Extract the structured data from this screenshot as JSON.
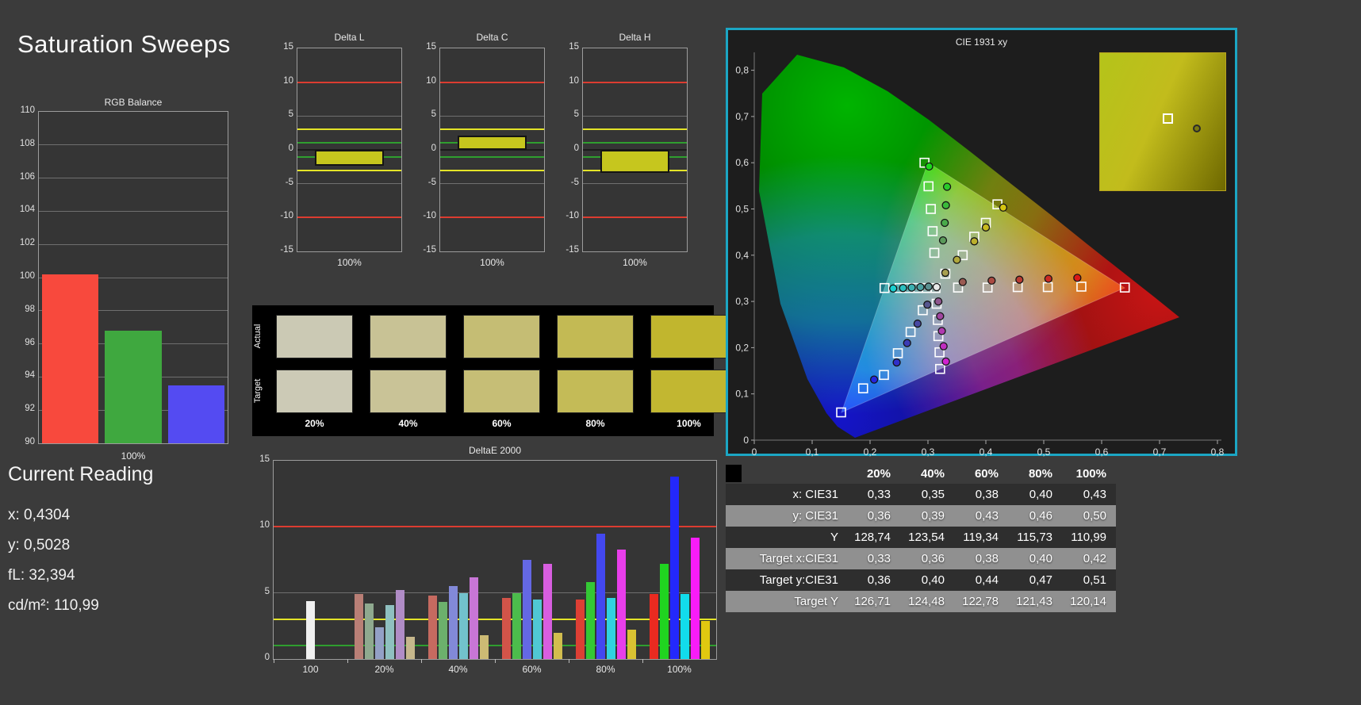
{
  "page": {
    "title": "Saturation Sweeps",
    "background": "#3b3b3b",
    "accent_frame": "#1ba6c4"
  },
  "chart_data": [
    {
      "id": "rgb_balance",
      "type": "bar",
      "title": "RGB Balance",
      "categories": [
        "Red",
        "Green",
        "Blue"
      ],
      "values": [
        100.2,
        96.8,
        93.5
      ],
      "colors": [
        "#f8493d",
        "#3fa83f",
        "#544bf2"
      ],
      "ylim": [
        90,
        110
      ],
      "ytick_step": 2,
      "bar_frac": 0.9,
      "xlabel": "100%"
    },
    {
      "id": "delta_l",
      "type": "bar",
      "title": "Delta L",
      "categories": [
        "100%"
      ],
      "values": [
        -2.3
      ],
      "colors": [
        "#c6c61e"
      ],
      "ylim": [
        -15,
        15
      ],
      "ytick_step": 5,
      "bar_frac": 0.66,
      "thick_border": true,
      "xlabel": "100%",
      "ref_lines": [
        [
          10,
          "#dc3c30"
        ],
        [
          -10,
          "#dc3c30"
        ],
        [
          3,
          "#e4e428"
        ],
        [
          -3,
          "#e4e428"
        ],
        [
          1,
          "#2f9e2f"
        ],
        [
          -1,
          "#2f9e2f"
        ]
      ]
    },
    {
      "id": "delta_c",
      "type": "bar",
      "title": "Delta C",
      "categories": [
        "100%"
      ],
      "values": [
        2.1
      ],
      "colors": [
        "#c6c61e"
      ],
      "ylim": [
        -15,
        15
      ],
      "ytick_step": 5,
      "bar_frac": 0.66,
      "thick_border": true,
      "xlabel": "100%",
      "ref_lines": [
        [
          10,
          "#dc3c30"
        ],
        [
          -10,
          "#dc3c30"
        ],
        [
          3,
          "#e4e428"
        ],
        [
          -3,
          "#e4e428"
        ],
        [
          1,
          "#2f9e2f"
        ],
        [
          -1,
          "#2f9e2f"
        ]
      ]
    },
    {
      "id": "delta_h",
      "type": "bar",
      "title": "Delta H",
      "categories": [
        "100%"
      ],
      "values": [
        -3.4
      ],
      "colors": [
        "#c6c61e"
      ],
      "ylim": [
        -15,
        15
      ],
      "ytick_step": 5,
      "bar_frac": 0.66,
      "thick_border": true,
      "xlabel": "100%",
      "ref_lines": [
        [
          10,
          "#dc3c30"
        ],
        [
          -10,
          "#dc3c30"
        ],
        [
          3,
          "#e4e428"
        ],
        [
          -3,
          "#e4e428"
        ],
        [
          1,
          "#2f9e2f"
        ],
        [
          -1,
          "#2f9e2f"
        ]
      ]
    },
    {
      "id": "deltae2000",
      "type": "grouped_bar",
      "title": "DeltaE 2000",
      "ylim": [
        0,
        15
      ],
      "yticks": [
        0,
        5,
        10,
        15
      ],
      "ref_lines": [
        [
          10,
          "#dc3c30"
        ],
        [
          3,
          "#e4e428"
        ],
        [
          1,
          "#2f9e2f"
        ]
      ],
      "series_note": "bars per group: Red, Green, Blue, Cyan, Magenta, Yellow",
      "groups": [
        {
          "label": "100",
          "values": [
            4.4
          ],
          "colors": [
            "#f0f0f0"
          ]
        },
        {
          "label": "20%",
          "values": [
            4.9,
            4.2,
            2.4,
            4.1,
            5.2,
            1.7
          ],
          "colors": [
            "#b97f76",
            "#8fa98f",
            "#93a0c6",
            "#8fc0c0",
            "#b08cc6",
            "#c6b78c"
          ]
        },
        {
          "label": "40%",
          "values": [
            4.8,
            4.3,
            5.5,
            5.0,
            6.2,
            1.8
          ],
          "colors": [
            "#c66a60",
            "#6cb06c",
            "#8289d8",
            "#72c2cc",
            "#c876d6",
            "#ccba74"
          ]
        },
        {
          "label": "60%",
          "values": [
            4.6,
            5.0,
            7.5,
            4.5,
            7.2,
            2.0
          ],
          "colors": [
            "#d25449",
            "#4cbc4c",
            "#6468e4",
            "#50c8d4",
            "#d85ee0",
            "#d2bd4e"
          ]
        },
        {
          "label": "80%",
          "values": [
            4.5,
            5.8,
            9.5,
            4.6,
            8.3,
            2.2
          ],
          "colors": [
            "#dd3f34",
            "#34c834",
            "#4348f0",
            "#30d2e0",
            "#e83eea",
            "#d8c232"
          ]
        },
        {
          "label": "100%",
          "values": [
            4.9,
            7.2,
            13.8,
            4.9,
            9.2,
            2.9
          ],
          "colors": [
            "#ea2a20",
            "#20d420",
            "#2328fc",
            "#12dcec",
            "#f81cf8",
            "#e0c810"
          ]
        }
      ]
    },
    {
      "id": "cie1931",
      "type": "scatter",
      "title": "CIE 1931 xy",
      "xlim": [
        0,
        0.8
      ],
      "ylim": [
        0,
        0.8
      ],
      "tick_labels": [
        "0",
        "0,1",
        "0,2",
        "0,3",
        "0,4",
        "0,5",
        "0,6",
        "0,7",
        "0,8"
      ],
      "frame_color": "#1ba6c4",
      "targets": [
        [
          0.313,
          0.329
        ],
        [
          0.352,
          0.33
        ],
        [
          0.403,
          0.33
        ],
        [
          0.455,
          0.331
        ],
        [
          0.507,
          0.331
        ],
        [
          0.565,
          0.332
        ],
        [
          0.64,
          0.33
        ],
        [
          0.311,
          0.405
        ],
        [
          0.308,
          0.452
        ],
        [
          0.305,
          0.5
        ],
        [
          0.301,
          0.549
        ],
        [
          0.294,
          0.6
        ],
        [
          0.291,
          0.281
        ],
        [
          0.27,
          0.234
        ],
        [
          0.248,
          0.188
        ],
        [
          0.224,
          0.141
        ],
        [
          0.188,
          0.112
        ],
        [
          0.15,
          0.06
        ],
        [
          0.33,
          0.36
        ],
        [
          0.36,
          0.4
        ],
        [
          0.38,
          0.44
        ],
        [
          0.4,
          0.47
        ],
        [
          0.42,
          0.51
        ],
        [
          0.298,
          0.329
        ],
        [
          0.283,
          0.329
        ],
        [
          0.268,
          0.329
        ],
        [
          0.251,
          0.329
        ],
        [
          0.225,
          0.329
        ],
        [
          0.315,
          0.295
        ],
        [
          0.317,
          0.26
        ],
        [
          0.318,
          0.225
        ],
        [
          0.32,
          0.19
        ],
        [
          0.321,
          0.154
        ]
      ],
      "measured": [
        {
          "x": 0.315,
          "y": 0.331,
          "c": "#e8e8e8"
        },
        {
          "x": 0.36,
          "y": 0.342,
          "c": "#9a5a52"
        },
        {
          "x": 0.41,
          "y": 0.345,
          "c": "#aa4a42"
        },
        {
          "x": 0.458,
          "y": 0.347,
          "c": "#ba3a32"
        },
        {
          "x": 0.508,
          "y": 0.349,
          "c": "#ca2a24"
        },
        {
          "x": 0.558,
          "y": 0.351,
          "c": "#da1a16"
        },
        {
          "x": 0.326,
          "y": 0.432,
          "c": "#5a9a5a"
        },
        {
          "x": 0.329,
          "y": 0.47,
          "c": "#4aaa4a"
        },
        {
          "x": 0.331,
          "y": 0.508,
          "c": "#3aba3a"
        },
        {
          "x": 0.333,
          "y": 0.548,
          "c": "#2aca2a"
        },
        {
          "x": 0.302,
          "y": 0.592,
          "c": "#1ada1a"
        },
        {
          "x": 0.299,
          "y": 0.293,
          "c": "#56568e"
        },
        {
          "x": 0.282,
          "y": 0.252,
          "c": "#4848a2"
        },
        {
          "x": 0.264,
          "y": 0.21,
          "c": "#3c3cb6"
        },
        {
          "x": 0.246,
          "y": 0.168,
          "c": "#3030ca"
        },
        {
          "x": 0.207,
          "y": 0.131,
          "c": "#2424de"
        },
        {
          "x": 0.33,
          "y": 0.362,
          "c": "#a8a050"
        },
        {
          "x": 0.35,
          "y": 0.39,
          "c": "#b0a83c"
        },
        {
          "x": 0.38,
          "y": 0.43,
          "c": "#bcb02c"
        },
        {
          "x": 0.4,
          "y": 0.46,
          "c": "#c8ba1e"
        },
        {
          "x": 0.43,
          "y": 0.503,
          "c": "#d4c410"
        },
        {
          "x": 0.301,
          "y": 0.332,
          "c": "#5a9090"
        },
        {
          "x": 0.287,
          "y": 0.331,
          "c": "#4aa0a0"
        },
        {
          "x": 0.272,
          "y": 0.33,
          "c": "#3ab0b0"
        },
        {
          "x": 0.257,
          "y": 0.329,
          "c": "#2ac0c0"
        },
        {
          "x": 0.24,
          "y": 0.328,
          "c": "#1ad0d0"
        },
        {
          "x": 0.318,
          "y": 0.3,
          "c": "#8e568e"
        },
        {
          "x": 0.321,
          "y": 0.268,
          "c": "#a046a0"
        },
        {
          "x": 0.324,
          "y": 0.236,
          "c": "#b03ab0"
        },
        {
          "x": 0.327,
          "y": 0.203,
          "c": "#c02ec0"
        },
        {
          "x": 0.331,
          "y": 0.17,
          "c": "#d022d0"
        }
      ],
      "inset": {
        "border": "#b8a41e",
        "gradient": [
          "#b4c41a",
          "#c2bc1c",
          "#6e6800"
        ],
        "square": {
          "left": "50%",
          "top": "44%"
        },
        "dot": {
          "left": "74%",
          "top": "52%"
        }
      }
    }
  ],
  "swatch_panel": {
    "row_labels": [
      "Actual",
      "Target"
    ],
    "col_labels": [
      "20%",
      "40%",
      "60%",
      "80%",
      "100%"
    ],
    "actual": [
      "#cbc9b4",
      "#c8c295",
      "#c5bd74",
      "#c3ba54",
      "#c1b62e"
    ],
    "target": [
      "#cccab6",
      "#c9c397",
      "#c6be76",
      "#c4bb57",
      "#c2b731"
    ]
  },
  "table": {
    "headers": [
      "20%",
      "40%",
      "60%",
      "80%",
      "100%"
    ],
    "rows": [
      {
        "label": "x: CIE31",
        "values": [
          "0,33",
          "0,35",
          "0,38",
          "0,40",
          "0,43"
        ]
      },
      {
        "label": "y: CIE31",
        "values": [
          "0,36",
          "0,39",
          "0,43",
          "0,46",
          "0,50"
        ]
      },
      {
        "label": "Y",
        "values": [
          "128,74",
          "123,54",
          "119,34",
          "115,73",
          "110,99"
        ]
      },
      {
        "label": "Target x:CIE31",
        "values": [
          "0,33",
          "0,36",
          "0,38",
          "0,40",
          "0,42"
        ]
      },
      {
        "label": "Target y:CIE31",
        "values": [
          "0,36",
          "0,40",
          "0,44",
          "0,47",
          "0,51"
        ]
      },
      {
        "label": "Target Y",
        "values": [
          "126,71",
          "124,48",
          "122,78",
          "121,43",
          "120,14"
        ]
      }
    ]
  },
  "current_reading": {
    "title": "Current Reading",
    "lines": [
      "x: 0,4304",
      "y: 0,5028",
      "fL: 32,394",
      "cd/m²: 110,99"
    ]
  }
}
